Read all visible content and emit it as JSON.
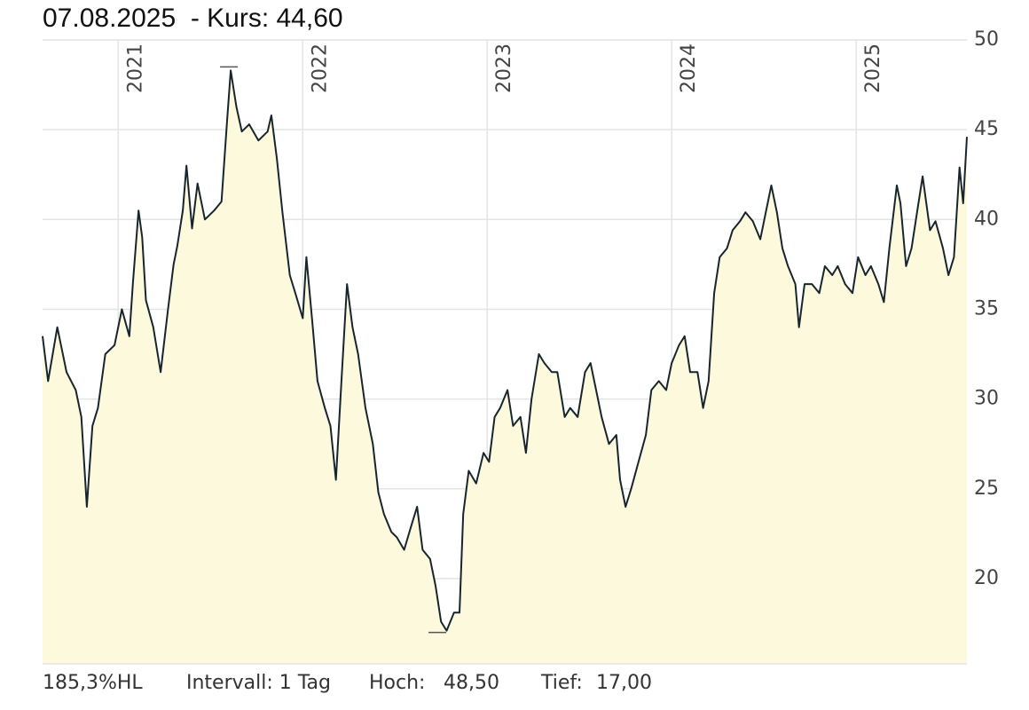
{
  "chart_data": {
    "type": "area",
    "title": "07.08.2025  - Kurs: 44,60",
    "color": "#17262e",
    "fill_color": "#fdf9dc",
    "grid": true,
    "xlim": [
      2020.59,
      2025.6
    ],
    "xticks": [
      2021,
      2022,
      2023,
      2024,
      2025
    ],
    "ylim": [
      15.25,
      50
    ],
    "yticks": [
      20,
      25,
      30,
      35,
      40,
      45,
      50
    ],
    "x": [
      2020.59,
      2020.62,
      2020.67,
      2020.72,
      2020.77,
      2020.8,
      2020.83,
      2020.86,
      2020.89,
      2020.93,
      2020.98,
      2021.02,
      2021.06,
      2021.08,
      2021.11,
      2021.13,
      2021.15,
      2021.19,
      2021.23,
      2021.27,
      2021.3,
      2021.32,
      2021.35,
      2021.37,
      2021.4,
      2021.43,
      2021.47,
      2021.52,
      2021.56,
      2021.59,
      2021.61,
      2021.64,
      2021.67,
      2021.71,
      2021.76,
      2021.81,
      2021.83,
      2021.86,
      2021.89,
      2021.93,
      2021.96,
      2022.0,
      2022.02,
      2022.05,
      2022.08,
      2022.12,
      2022.15,
      2022.18,
      2022.21,
      2022.24,
      2022.27,
      2022.3,
      2022.34,
      2022.38,
      2022.41,
      2022.44,
      2022.48,
      2022.51,
      2022.55,
      2022.59,
      2022.62,
      2022.65,
      2022.69,
      2022.72,
      2022.75,
      2022.78,
      2022.82,
      2022.85,
      2022.87,
      2022.9,
      2022.94,
      2022.98,
      2023.01,
      2023.04,
      2023.07,
      2023.11,
      2023.14,
      2023.18,
      2023.21,
      2023.24,
      2023.28,
      2023.31,
      2023.35,
      2023.38,
      2023.42,
      2023.45,
      2023.49,
      2023.53,
      2023.56,
      2023.59,
      2023.62,
      2023.66,
      2023.7,
      2023.72,
      2023.75,
      2023.78,
      2023.82,
      2023.86,
      2023.89,
      2023.93,
      2023.97,
      2024.0,
      2024.04,
      2024.07,
      2024.1,
      2024.14,
      2024.17,
      2024.2,
      2024.23,
      2024.26,
      2024.3,
      2024.33,
      2024.37,
      2024.4,
      2024.44,
      2024.48,
      2024.51,
      2024.54,
      2024.57,
      2024.6,
      2024.63,
      2024.67,
      2024.69,
      2024.72,
      2024.76,
      2024.8,
      2024.83,
      2024.87,
      2024.9,
      2024.94,
      2024.98,
      2025.01,
      2025.05,
      2025.08,
      2025.12,
      2025.15,
      2025.18,
      2025.22,
      2025.24,
      2025.27,
      2025.3,
      2025.33,
      2025.36,
      2025.4,
      2025.43,
      2025.47,
      2025.5,
      2025.53,
      2025.56,
      2025.58,
      2025.6
    ],
    "values": [
      33.5,
      31,
      34,
      31.5,
      30.5,
      29,
      24,
      28.5,
      29.5,
      32.5,
      33,
      35,
      33.5,
      36.5,
      40.5,
      39,
      35.5,
      34,
      31.5,
      35,
      37.5,
      38.5,
      40.5,
      43,
      39.5,
      42,
      40,
      40.5,
      41,
      45.5,
      48.3,
      46.3,
      44.9,
      45.3,
      44.4,
      44.9,
      45.8,
      43.4,
      40.4,
      36.9,
      35.9,
      34.5,
      37.9,
      34.5,
      31,
      29.5,
      28.5,
      25.5,
      31,
      36.4,
      34,
      32.5,
      29.5,
      27.5,
      24.8,
      23.6,
      22.6,
      22.3,
      21.6,
      23,
      24,
      21.6,
      21.1,
      19.6,
      17.6,
      17.1,
      18.1,
      18.1,
      23.6,
      26,
      25.3,
      27,
      26.5,
      29,
      29.5,
      30.5,
      28.5,
      29,
      27,
      30,
      32.5,
      32,
      31.5,
      31.5,
      29,
      29.5,
      29,
      31.5,
      32,
      30.5,
      29,
      27.5,
      28,
      25.5,
      24,
      25,
      26.5,
      28,
      30.5,
      31,
      30.5,
      32,
      33,
      33.5,
      31.5,
      31.5,
      29.5,
      31,
      35.9,
      37.9,
      38.4,
      39.4,
      39.9,
      40.4,
      39.9,
      38.9,
      40.4,
      41.9,
      40.4,
      38.4,
      37.4,
      36.4,
      34,
      36.4,
      36.4,
      35.9,
      37.4,
      36.9,
      37.4,
      36.4,
      35.9,
      37.9,
      36.9,
      37.4,
      36.4,
      35.4,
      38.4,
      41.9,
      40.9,
      37.4,
      38.4,
      40.4,
      42.4,
      39.4,
      39.9,
      38.4,
      36.9,
      37.9,
      42.9,
      40.9,
      44.6
    ],
    "extremes": {
      "x": [
        2021.6,
        2022.73
      ],
      "values": [
        48.5,
        17
      ]
    }
  },
  "footer": {
    "range": "185,3%HL",
    "interval": "Intervall: 1 Tag",
    "high_label": "Hoch:",
    "high_value": "48,50",
    "low_label": "Tief:",
    "low_value": "17,00"
  }
}
